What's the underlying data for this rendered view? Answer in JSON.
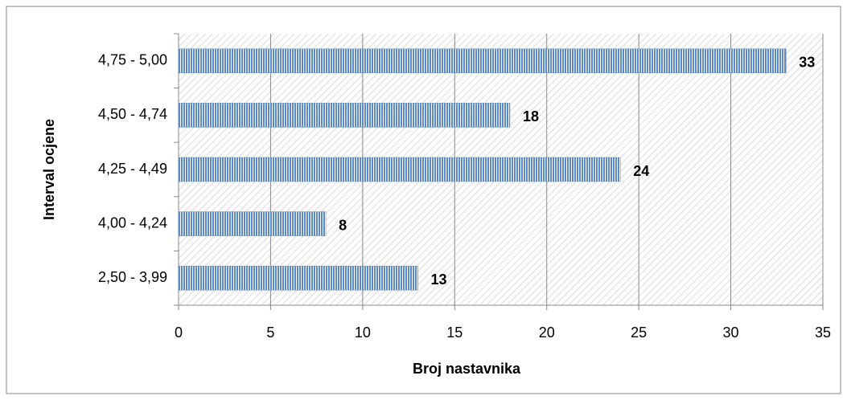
{
  "chart_data": {
    "type": "bar",
    "orientation": "horizontal",
    "x_label": "Broj nastavnika",
    "y_label": "Interval ocjene",
    "categories": [
      "2,50 - 3,99",
      "4,00 - 4,24",
      "4,25 - 4,49",
      "4,50 - 4,74",
      "4,75 - 5,00"
    ],
    "values": [
      13,
      8,
      24,
      18,
      33
    ],
    "color": "#5b8ac6",
    "xlim": [
      0,
      35
    ],
    "xticks": [
      0,
      5,
      10,
      15,
      20,
      25,
      30,
      35
    ],
    "grid": true
  }
}
